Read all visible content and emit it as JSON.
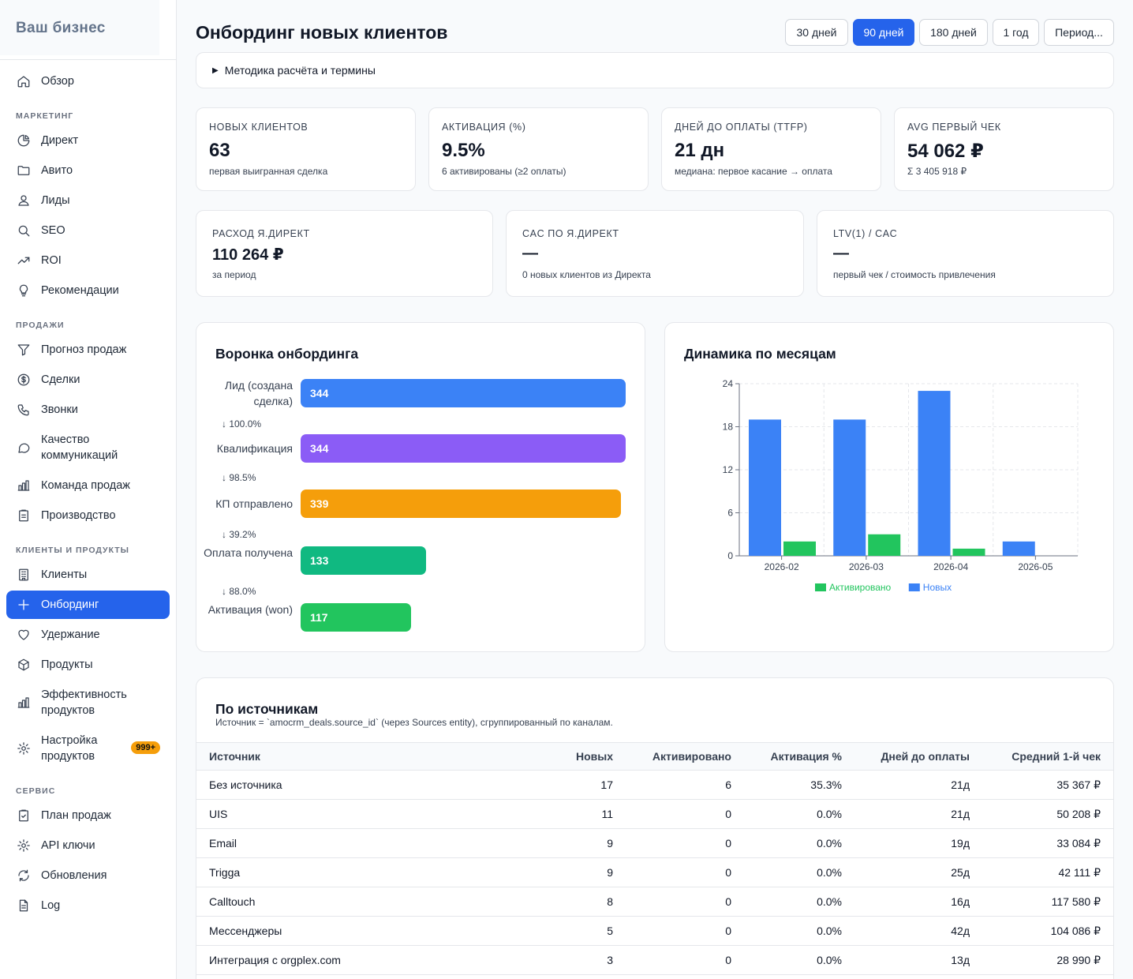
{
  "sidebar": {
    "brand": "Ваш бизнес",
    "overview": "Обзор",
    "sections": {
      "marketing": "МАРКЕТИНГ",
      "sales": "ПРОДАЖИ",
      "clients": "КЛИЕНТЫ И ПРОДУКТЫ",
      "service": "СЕРВИС"
    },
    "marketing_items": [
      "Директ",
      "Авито",
      "Лиды",
      "SEO",
      "ROI",
      "Рекомендации"
    ],
    "sales_items": [
      "Прогноз продаж",
      "Сделки",
      "Звонки",
      "Качество коммуникаций",
      "Команда продаж",
      "Производство"
    ],
    "clients_items": [
      "Клиенты",
      "Онбординг",
      "Удержание",
      "Продукты",
      "Эффективность продуктов",
      "Настройка продуктов"
    ],
    "service_items": [
      "План продаж",
      "API ключи",
      "Обновления",
      "Log"
    ],
    "settings_badge": "999+"
  },
  "header": {
    "title": "Онбординг новых клиентов",
    "periods": [
      "30 дней",
      "90 дней",
      "180 дней",
      "1 год",
      "Период..."
    ],
    "active_period": "90 дней"
  },
  "methodology": "Методика расчёта и термины",
  "kpis": [
    {
      "label": "НОВЫХ КЛИЕНТОВ",
      "value": "63",
      "sub": "первая выигранная сделка"
    },
    {
      "label": "АКТИВАЦИЯ (%)",
      "value": "9.5%",
      "sub": "6 активированы (≥2 оплаты)"
    },
    {
      "label": "ДНЕЙ ДО ОПЛАТЫ (TTFP)",
      "value": "21 дн",
      "sub": "медиана: первое касание → оплата"
    },
    {
      "label": "AVG ПЕРВЫЙ ЧЕК",
      "value": "54 062 ₽",
      "sub": "Σ 3 405 918 ₽"
    },
    {
      "label": "РАСХОД Я.ДИРЕКТ",
      "value": "110 264 ₽",
      "sub": "за период"
    },
    {
      "label": "CAC ПО Я.ДИРЕКТ",
      "value": "—",
      "sub": "0 новых клиентов из Директа"
    },
    {
      "label": "LTV(1) / CAC",
      "value": "—",
      "sub": "первый чек / стоимость привлечения"
    }
  ],
  "funnel": {
    "title": "Воронка онбординга",
    "stages": [
      {
        "label": "Лид (создана сделка)",
        "value": 344,
        "color": "#3b82f6"
      },
      {
        "label": "Квалификация",
        "value": 344,
        "color": "#8b5cf6"
      },
      {
        "label": "КП отправлено",
        "value": 339,
        "color": "#f59e0b"
      },
      {
        "label": "Оплата получена",
        "value": 133,
        "color": "#10b981"
      },
      {
        "label": "Активация (won)",
        "value": 117,
        "color": "#22c55e"
      }
    ],
    "conversions": [
      "↓ 100.0%",
      "↓ 98.5%",
      "↓ 39.2%",
      "↓ 88.0%"
    ]
  },
  "chart_data": {
    "type": "bar",
    "title": "Динамика по месяцам",
    "categories": [
      "2026-02",
      "2026-03",
      "2026-04",
      "2026-05"
    ],
    "series": [
      {
        "name": "Новых",
        "values": [
          19,
          19,
          23,
          2
        ],
        "color": "#3b82f6"
      },
      {
        "name": "Активировано",
        "values": [
          2,
          3,
          1,
          0
        ],
        "color": "#22c55e"
      }
    ],
    "legend_order": [
      "Активировано",
      "Новых"
    ],
    "yticks": [
      0,
      6,
      12,
      18,
      24
    ],
    "ylim": [
      0,
      24
    ],
    "grid": true,
    "legend": "bottom"
  },
  "sources": {
    "title": "По источникам",
    "subtitle": "Источник = `amocrm_deals.source_id` (через Sources entity), сгруппированный по каналам.",
    "columns": [
      "Источник",
      "Новых",
      "Активировано",
      "Активация %",
      "Дней до оплаты",
      "Средний 1-й чек"
    ],
    "rows": [
      [
        "Без источника",
        "17",
        "6",
        "35.3%",
        "21д",
        "35 367 ₽"
      ],
      [
        "UIS",
        "11",
        "0",
        "0.0%",
        "21д",
        "50 208 ₽"
      ],
      [
        "Email",
        "9",
        "0",
        "0.0%",
        "19д",
        "33 084 ₽"
      ],
      [
        "Trigga",
        "9",
        "0",
        "0.0%",
        "25д",
        "42 111 ₽"
      ],
      [
        "Calltouch",
        "8",
        "0",
        "0.0%",
        "16д",
        "117 580 ₽"
      ],
      [
        "Мессенджеры",
        "5",
        "0",
        "0.0%",
        "42д",
        "104 086 ₽"
      ],
      [
        "Интеграция с orgplex.com",
        "3",
        "0",
        "0.0%",
        "13д",
        "28 990 ₽"
      ]
    ]
  }
}
